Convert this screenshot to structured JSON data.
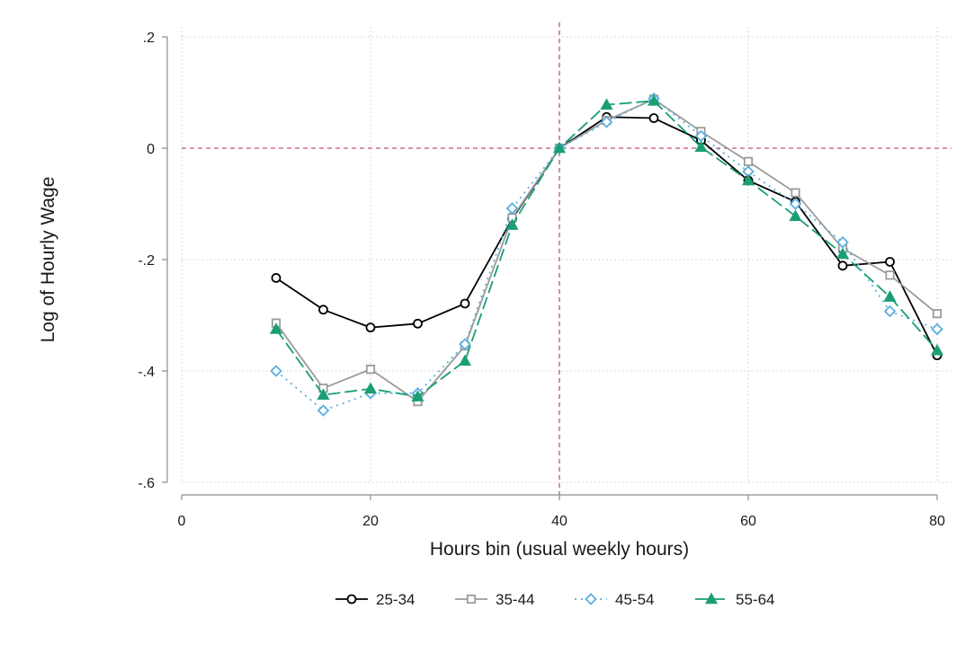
{
  "chart_data": {
    "type": "line",
    "title": "",
    "xlabel": "Hours bin (usual weekly hours)",
    "ylabel": "Log of Hourly Wage",
    "xlim": [
      0,
      80
    ],
    "ylim": [
      -0.6,
      0.2
    ],
    "x_ticks": [
      0,
      20,
      40,
      60,
      80
    ],
    "x_tick_labels": [
      "0",
      "20",
      "40",
      "60",
      "80"
    ],
    "y_ticks": [
      0.2,
      0,
      -0.2,
      -0.4,
      -0.6
    ],
    "y_tick_labels": [
      ".2",
      "0",
      "-.2",
      "-.4",
      "-.6"
    ],
    "grid": true,
    "reference_lines": {
      "x": 40,
      "y": 0,
      "color": "#c0507a"
    },
    "legend_position": "bottom",
    "x": [
      10,
      15,
      20,
      25,
      30,
      35,
      40,
      45,
      50,
      55,
      60,
      65,
      70,
      75,
      80
    ],
    "series": [
      {
        "name": "25-34",
        "color": "#000000",
        "marker": "circle",
        "dash": "",
        "values": [
          -0.233,
          -0.29,
          -0.322,
          -0.315,
          -0.279,
          -0.127,
          0.0,
          0.056,
          0.054,
          0.014,
          -0.058,
          -0.096,
          -0.211,
          -0.204,
          -0.372
        ]
      },
      {
        "name": "35-44",
        "color": "#9b9b9b",
        "marker": "square",
        "dash": "",
        "values": [
          -0.314,
          -0.431,
          -0.397,
          -0.455,
          -0.355,
          -0.125,
          0.0,
          0.05,
          0.088,
          0.03,
          -0.024,
          -0.08,
          -0.18,
          -0.228,
          -0.297
        ]
      },
      {
        "name": "45-54",
        "color": "#5aaee0",
        "marker": "diamond",
        "dash": "2,5",
        "values": [
          -0.4,
          -0.471,
          -0.44,
          -0.44,
          -0.352,
          -0.108,
          0.0,
          0.047,
          0.089,
          0.022,
          -0.042,
          -0.1,
          -0.169,
          -0.293,
          -0.325
        ]
      },
      {
        "name": "55-64",
        "color": "#1a9e76",
        "marker": "triangle",
        "dash": "14,5",
        "values": [
          -0.325,
          -0.443,
          -0.432,
          -0.446,
          -0.382,
          -0.138,
          0.0,
          0.078,
          0.085,
          0.002,
          -0.058,
          -0.122,
          -0.19,
          -0.267,
          -0.363
        ]
      }
    ]
  }
}
